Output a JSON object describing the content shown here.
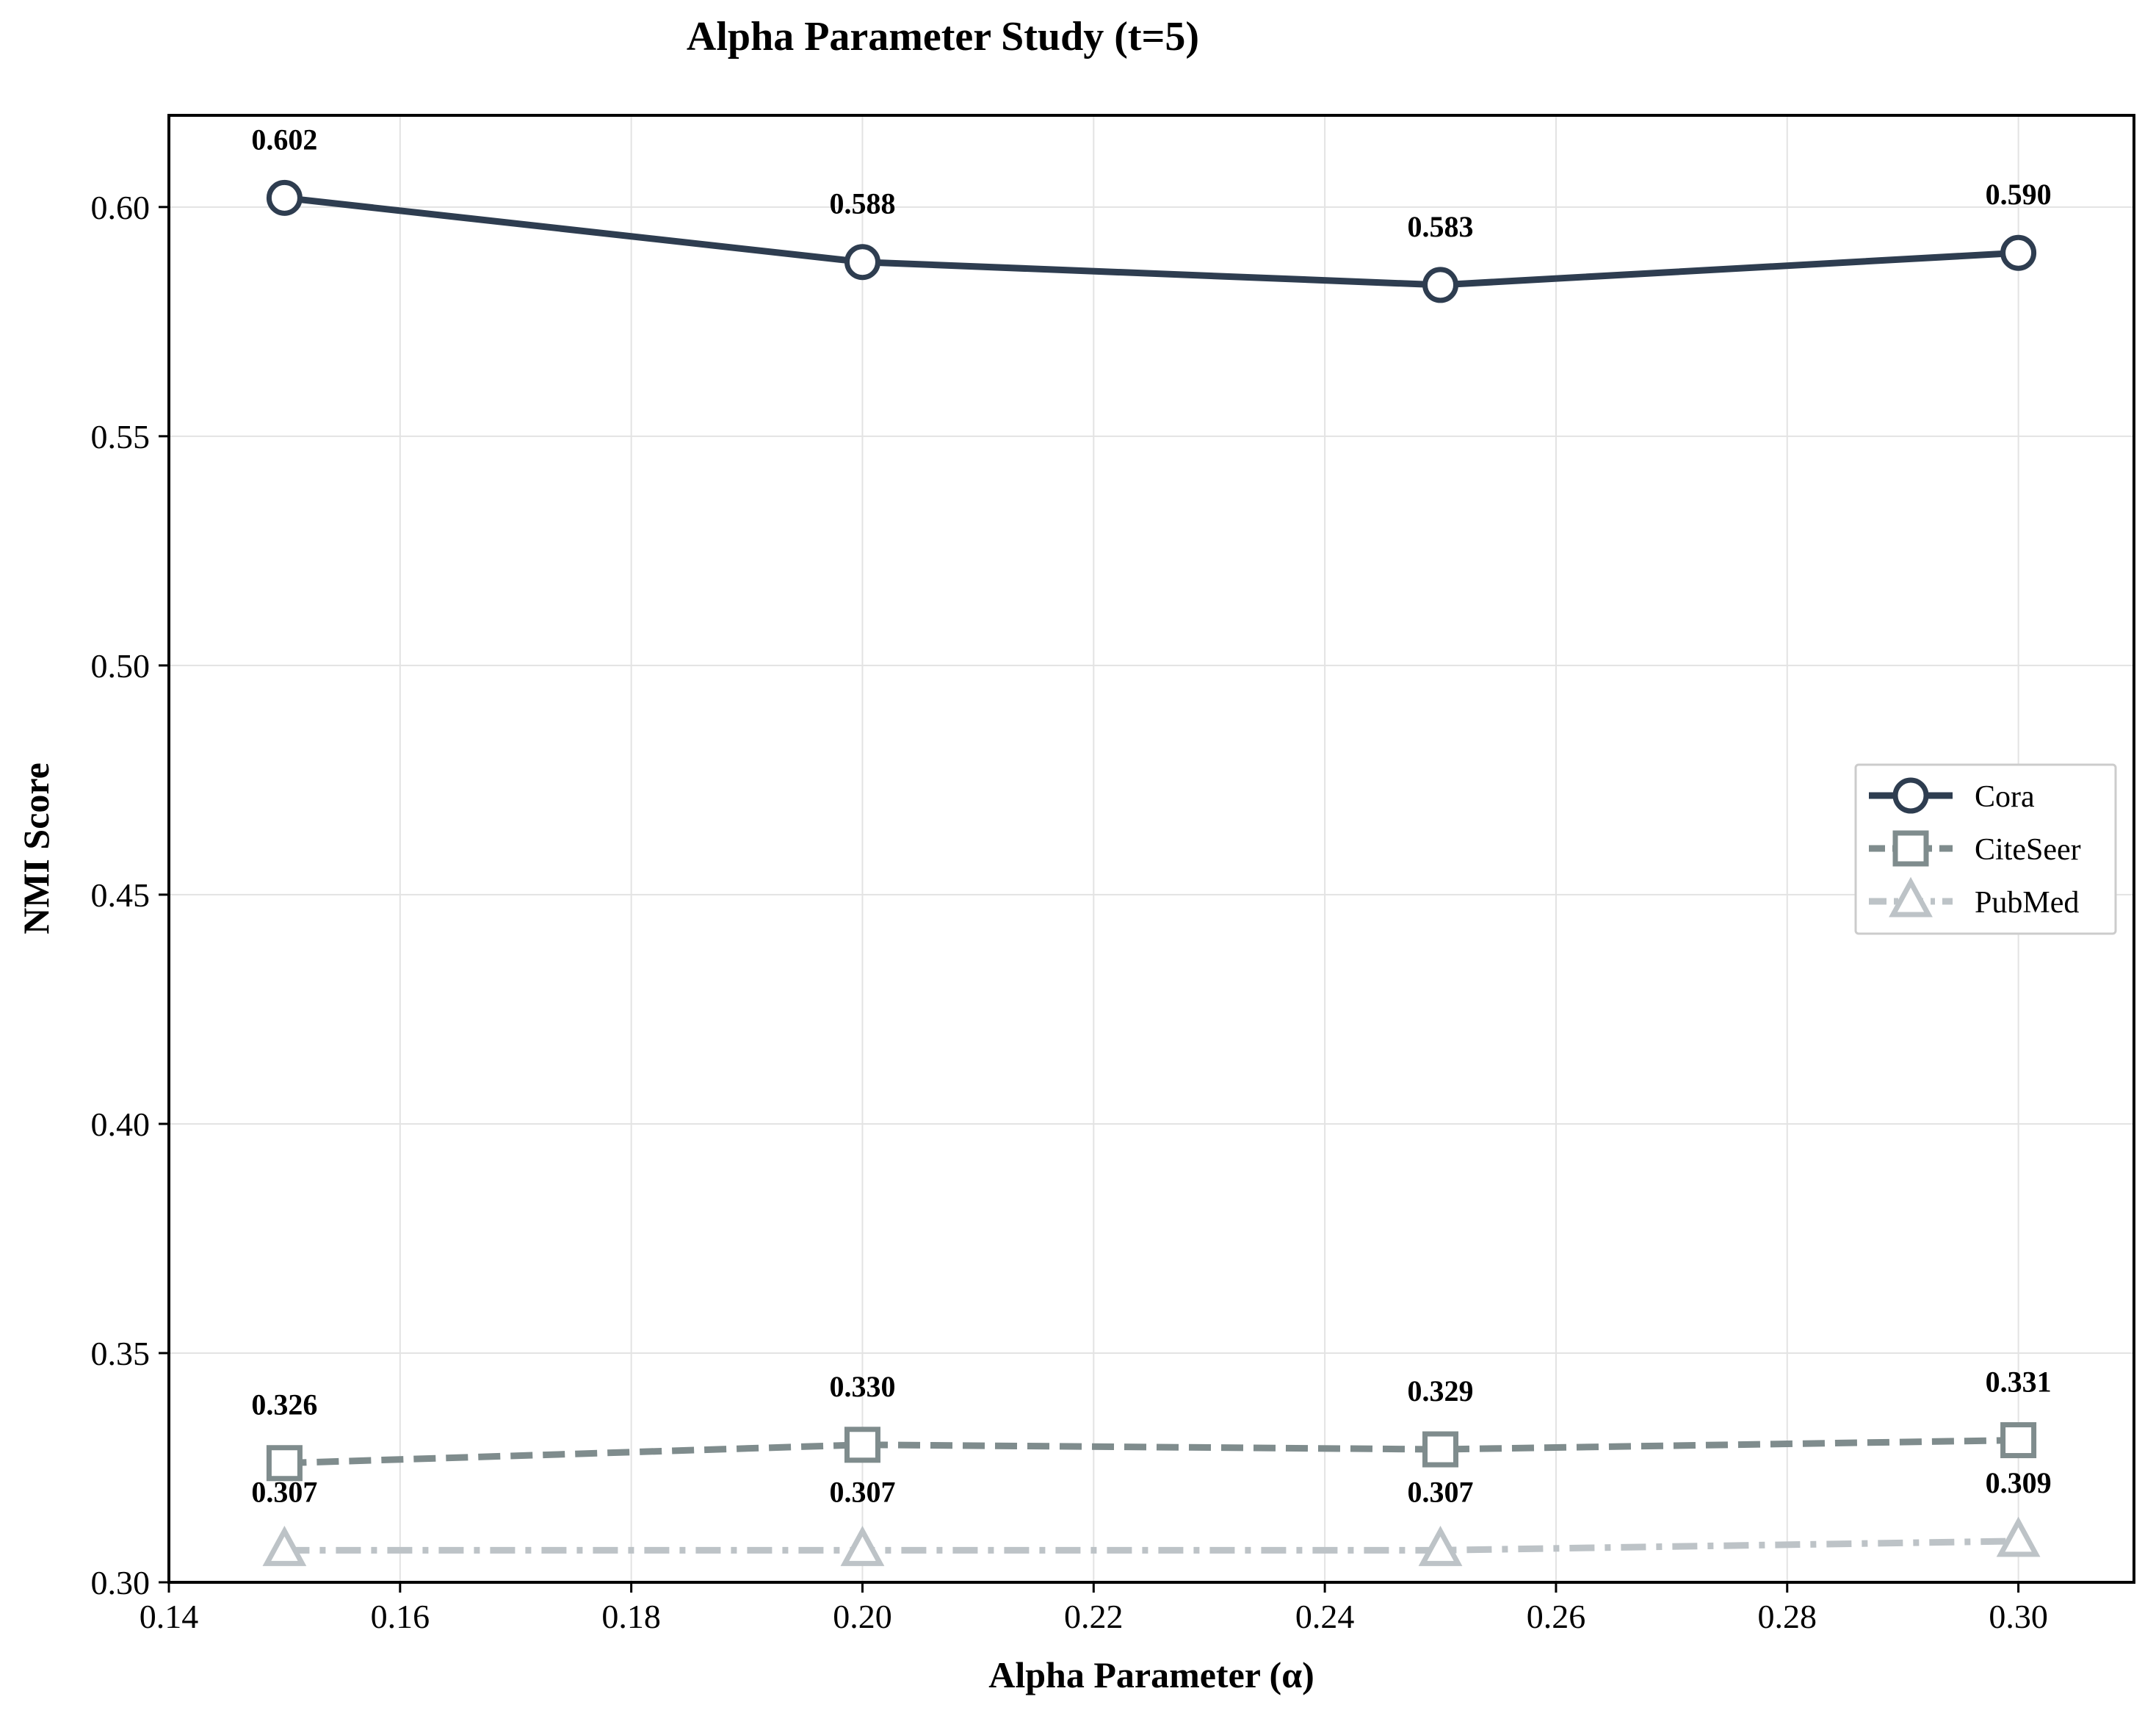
{
  "chart_data": {
    "type": "line",
    "title": "Alpha Parameter Study (t=5)",
    "xlabel": "Alpha Parameter (α)",
    "ylabel": "NMI Score",
    "xlim": [
      0.14,
      0.31
    ],
    "ylim": [
      0.3,
      0.62
    ],
    "xticks": [
      "0.14",
      "0.16",
      "0.18",
      "0.20",
      "0.22",
      "0.24",
      "0.26",
      "0.28",
      "0.30"
    ],
    "yticks": [
      "0.30",
      "0.35",
      "0.40",
      "0.45",
      "0.50",
      "0.55",
      "0.60"
    ],
    "grid": true,
    "legend_position": "center-right",
    "x": [
      0.15,
      0.2,
      0.25,
      0.3
    ],
    "series": [
      {
        "name": "Cora",
        "values": [
          0.602,
          0.588,
          0.583,
          0.59
        ],
        "labels": [
          "0.602",
          "0.588",
          "0.583",
          "0.590"
        ],
        "color": "#2e3d50",
        "marker": "circle",
        "linestyle": "solid"
      },
      {
        "name": "CiteSeer",
        "values": [
          0.326,
          0.33,
          0.329,
          0.331
        ],
        "labels": [
          "0.326",
          "0.330",
          "0.329",
          "0.331"
        ],
        "color": "#7f8c8d",
        "marker": "square",
        "linestyle": "dashed"
      },
      {
        "name": "PubMed",
        "values": [
          0.307,
          0.307,
          0.307,
          0.309
        ],
        "labels": [
          "0.307",
          "0.307",
          "0.307",
          "0.309"
        ],
        "color": "#bdc3c7",
        "marker": "triangle",
        "linestyle": "dashdot"
      }
    ]
  }
}
